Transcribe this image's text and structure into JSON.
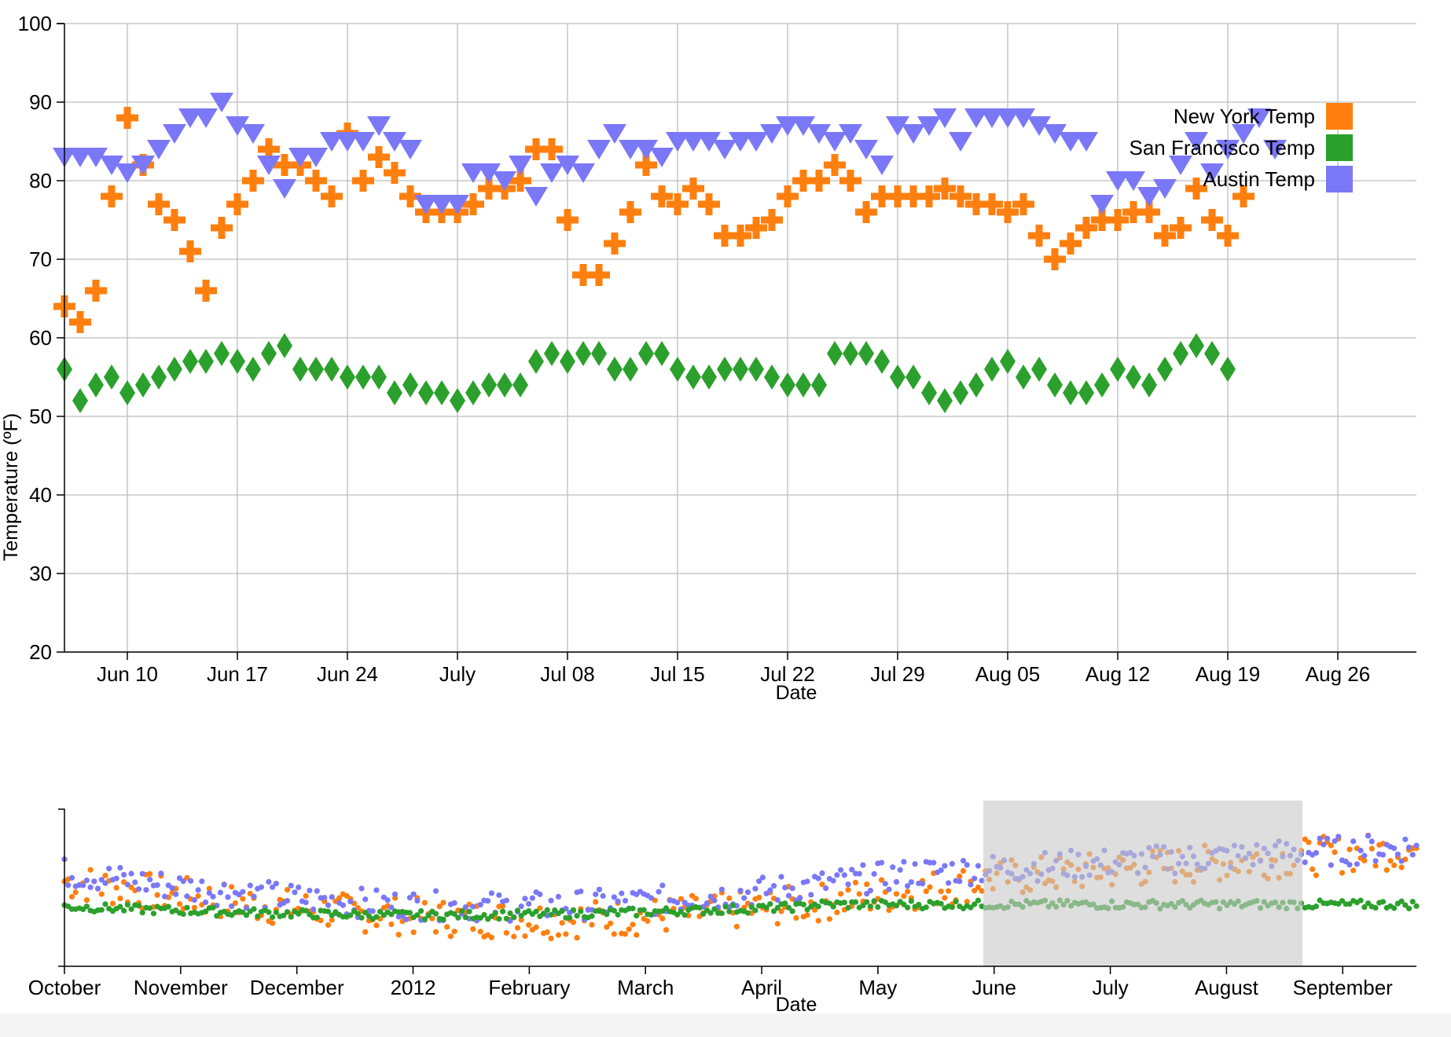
{
  "chart_data": [
    {
      "type": "scatter",
      "xlabel": "Date",
      "ylabel": "Temperature (ºF)",
      "ylim": [
        20,
        100
      ],
      "xlim": [
        "2012-06-06",
        "2012-08-31"
      ],
      "y_ticks": [
        "100",
        "90",
        "80",
        "70",
        "60",
        "50",
        "40",
        "30",
        "20"
      ],
      "x_ticks": [
        {
          "date": "2012-06-10",
          "label": "Jun 10"
        },
        {
          "date": "2012-06-17",
          "label": "Jun 17"
        },
        {
          "date": "2012-06-24",
          "label": "Jun 24"
        },
        {
          "date": "2012-07-01",
          "label": "July"
        },
        {
          "date": "2012-07-08",
          "label": "Jul 08"
        },
        {
          "date": "2012-07-15",
          "label": "Jul 15"
        },
        {
          "date": "2012-07-22",
          "label": "Jul 22"
        },
        {
          "date": "2012-07-29",
          "label": "Jul 29"
        },
        {
          "date": "2012-08-05",
          "label": "Aug 05"
        },
        {
          "date": "2012-08-12",
          "label": "Aug 12"
        },
        {
          "date": "2012-08-19",
          "label": "Aug 19"
        },
        {
          "date": "2012-08-26",
          "label": "Aug 26"
        }
      ],
      "grid": true,
      "legend_position": "top-right",
      "start_date": "2012-06-06",
      "series": [
        {
          "name": "New York Temp",
          "color": "#ff7f0e",
          "marker": "cross",
          "values": [
            64,
            62,
            66,
            78,
            88,
            82,
            77,
            75,
            71,
            66,
            74,
            77,
            80,
            84,
            82,
            82,
            80,
            78,
            86,
            80,
            83,
            81,
            78,
            76,
            76,
            76,
            77,
            79,
            79,
            80,
            84,
            84,
            75,
            68,
            68,
            72,
            76,
            82,
            78,
            77,
            79,
            77,
            73,
            73,
            74,
            75,
            78,
            80,
            80,
            82,
            80,
            76,
            78,
            78,
            78,
            78,
            79,
            78,
            77,
            77,
            76,
            77,
            73,
            70,
            72,
            74,
            75,
            75,
            76,
            76,
            73,
            74,
            79,
            75,
            73,
            78
          ]
        },
        {
          "name": "San Francisco Temp",
          "color": "#2ca02c",
          "marker": "diamond",
          "values": [
            56,
            52,
            54,
            55,
            53,
            54,
            55,
            56,
            57,
            57,
            58,
            57,
            56,
            58,
            59,
            56,
            56,
            56,
            55,
            55,
            55,
            53,
            54,
            53,
            53,
            52,
            53,
            54,
            54,
            54,
            57,
            58,
            57,
            58,
            58,
            56,
            56,
            58,
            58,
            56,
            55,
            55,
            56,
            56,
            56,
            55,
            54,
            54,
            54,
            58,
            58,
            58,
            57,
            55,
            55,
            53,
            52,
            53,
            54,
            56,
            57,
            55,
            56,
            54,
            53,
            53,
            54,
            56,
            55,
            54,
            56,
            58,
            59,
            58,
            56
          ]
        },
        {
          "name": "Austin Temp",
          "color": "#7b78f7",
          "marker": "triangle-down",
          "values": [
            83,
            83,
            83,
            82,
            81,
            82,
            84,
            86,
            88,
            88,
            90,
            87,
            86,
            82,
            79,
            83,
            83,
            85,
            85,
            85,
            87,
            85,
            84,
            77,
            77,
            77,
            81,
            81,
            80,
            82,
            78,
            81,
            82,
            81,
            84,
            86,
            84,
            84,
            83,
            85,
            85,
            85,
            84,
            85,
            85,
            86,
            87,
            87,
            86,
            85,
            86,
            84,
            82,
            87,
            86,
            87,
            88,
            85,
            88,
            88,
            88,
            88,
            87,
            86,
            85,
            85,
            77,
            80,
            80,
            78,
            79,
            82,
            85,
            81,
            84,
            86,
            88,
            84
          ]
        }
      ]
    },
    {
      "type": "scatter",
      "xlabel": "Date",
      "x_ticks": [
        "October",
        "November",
        "December",
        "2012",
        "February",
        "March",
        "April",
        "May",
        "June",
        "July",
        "August",
        "September"
      ],
      "brush_selection": [
        "2012-06-06",
        "2012-08-31"
      ],
      "series": [
        {
          "name": "New York Temp",
          "color": "#ff7f0e",
          "marker": "dot"
        },
        {
          "name": "San Francisco Temp",
          "color": "#2ca02c",
          "marker": "dot"
        },
        {
          "name": "Austin Temp",
          "color": "#7b78f7",
          "marker": "dot"
        }
      ]
    }
  ]
}
